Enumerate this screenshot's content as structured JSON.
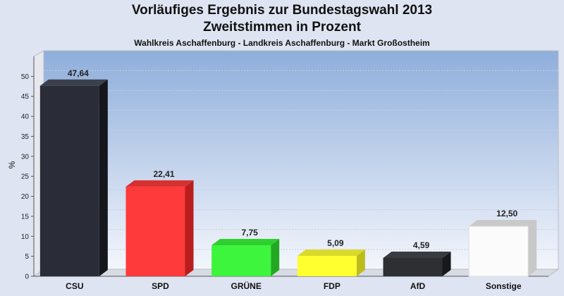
{
  "chart_data": {
    "type": "bar",
    "title": "Vorläufiges Ergebnis zur Bundestagswahl 2013",
    "subtitle": "Zweitstimmen in Prozent",
    "caption": "Wahlkreis Aschaffenburg - Landkreis Aschaffenburg - Markt Großostheim",
    "xlabel": "",
    "ylabel": "%",
    "ylim": [
      0,
      55
    ],
    "yticks": [
      0,
      5,
      10,
      15,
      20,
      25,
      30,
      35,
      40,
      45,
      50
    ],
    "grid": true,
    "categories": [
      "CSU",
      "SPD",
      "GRÜNE",
      "FDP",
      "AfD",
      "Sonstige"
    ],
    "values": [
      47.64,
      22.41,
      7.75,
      5.09,
      4.59,
      12.5
    ],
    "value_labels": [
      "47,64",
      "22,41",
      "7,75",
      "5,09",
      "4,59",
      "12,50"
    ],
    "colors": [
      "#2a2d38",
      "#ff3a3a",
      "#3cf53c",
      "#ffff30",
      "#2e2f33",
      "#fbfbfb"
    ],
    "side_colors": [
      "#15171d",
      "#b81e1e",
      "#22a822",
      "#bcbc1c",
      "#18191c",
      "#c8c8c8"
    ],
    "top_colors": [
      "#3c3f4c",
      "#d63030",
      "#2fcf2f",
      "#d9d92a",
      "#3a3b40",
      "#c9c9c9"
    ]
  }
}
